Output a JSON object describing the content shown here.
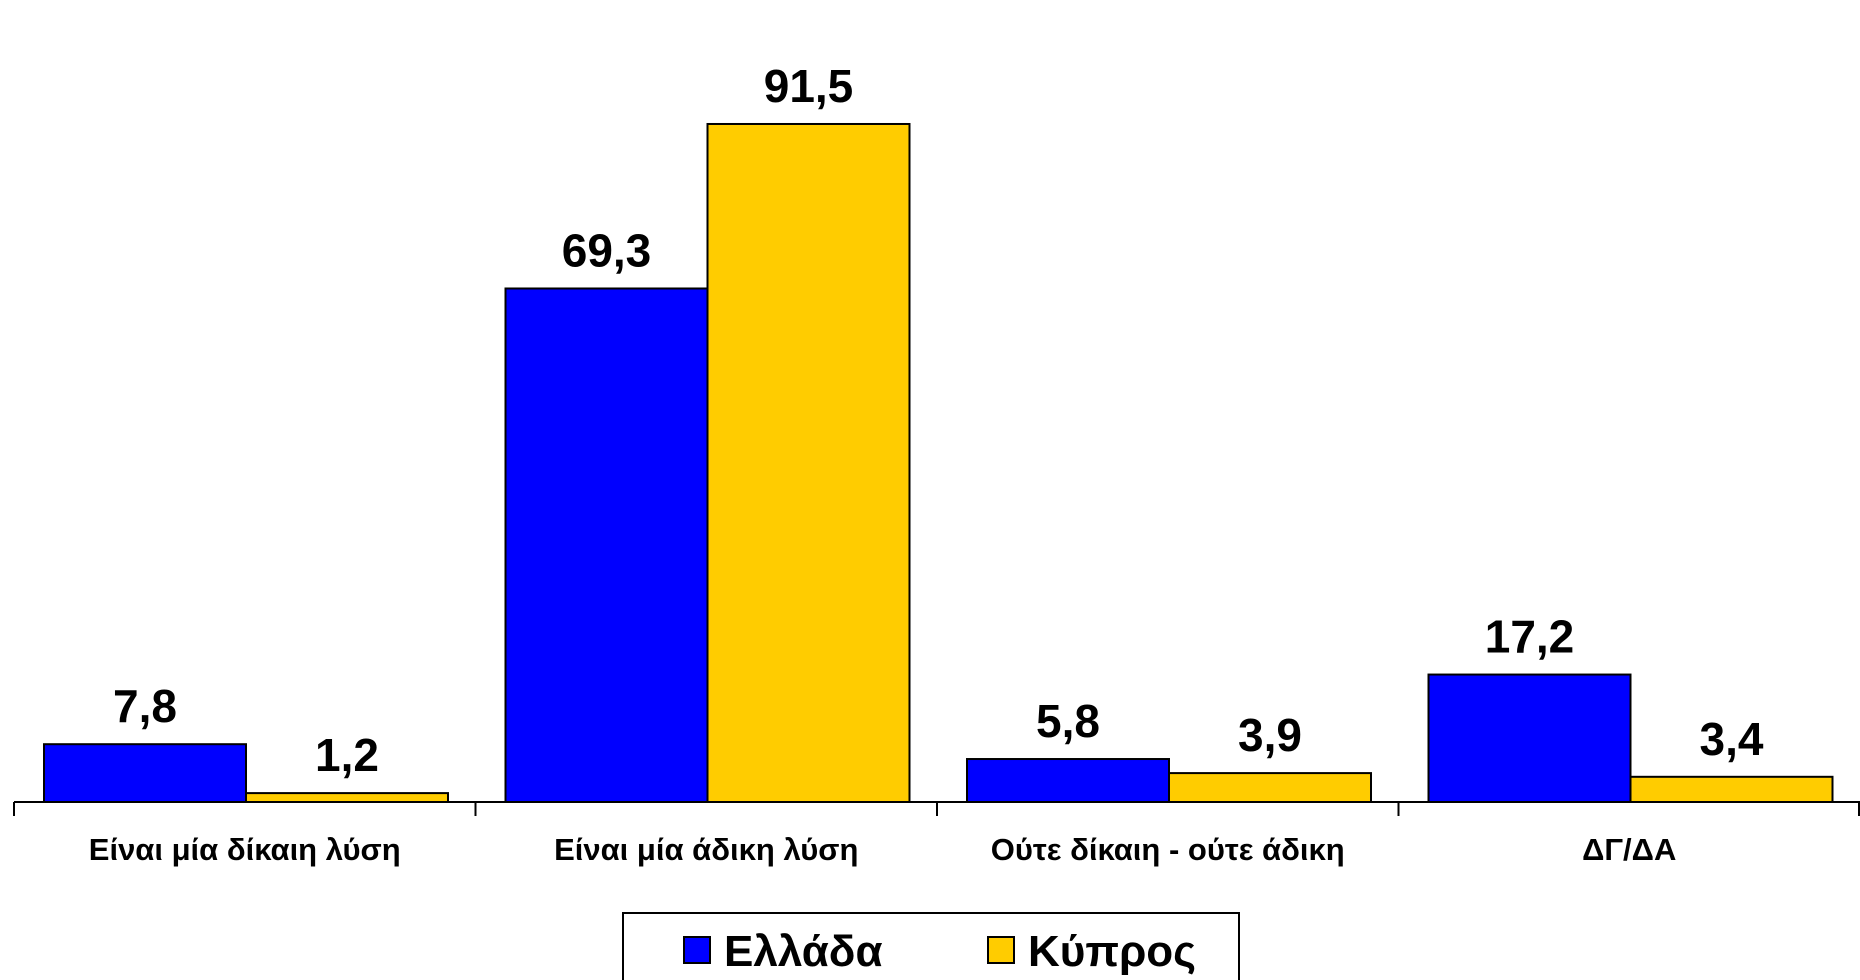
{
  "chart_data": {
    "type": "bar",
    "categories": [
      "Είναι μία δίκαιη λύση",
      "Είναι μία άδικη λύση",
      "Ούτε δίκαιη - ούτε άδικη",
      "ΔΓ/ΔΑ"
    ],
    "series": [
      {
        "name": "Ελλάδα",
        "color": "#0000ff",
        "values": [
          7.8,
          69.3,
          5.8,
          17.2
        ],
        "labels": [
          "7,8",
          "69,3",
          "5,8",
          "17,2"
        ]
      },
      {
        "name": "Κύπρος",
        "color": "#ffcc00",
        "values": [
          1.2,
          91.5,
          3.9,
          3.4
        ],
        "labels": [
          "1,2",
          "91,5",
          "3,9",
          "3,4"
        ]
      }
    ],
    "title": "",
    "xlabel": "",
    "ylabel": "",
    "ylim": [
      0,
      100
    ],
    "grid": false,
    "legend_position": "bottom-center"
  }
}
